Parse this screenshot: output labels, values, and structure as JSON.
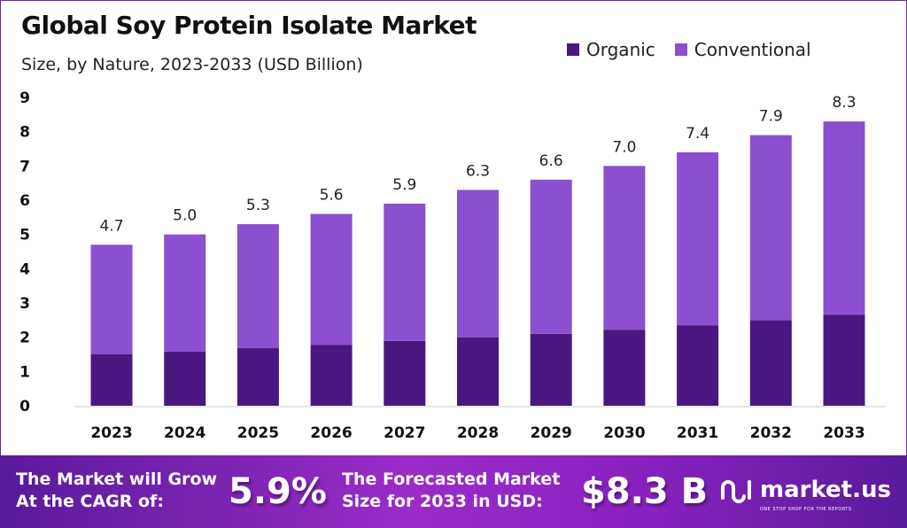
{
  "chart_data": {
    "type": "bar",
    "stacked": true,
    "title": "Global Soy Protein Isolate Market",
    "subtitle": "Size, by Nature, 2023-2033 (USD Billion)",
    "categories": [
      "2023",
      "2024",
      "2025",
      "2026",
      "2027",
      "2028",
      "2029",
      "2030",
      "2031",
      "2032",
      "2033"
    ],
    "series": [
      {
        "name": "Organic",
        "color": "#4a1780",
        "values": [
          1.5,
          1.58,
          1.68,
          1.78,
          1.89,
          2.0,
          2.1,
          2.22,
          2.35,
          2.5,
          2.66
        ]
      },
      {
        "name": "Conventional",
        "color": "#8b4fd0",
        "values": [
          3.2,
          3.42,
          3.62,
          3.82,
          4.01,
          4.3,
          4.5,
          4.78,
          5.05,
          5.4,
          5.64
        ]
      }
    ],
    "totals": [
      "4.7",
      "5.0",
      "5.3",
      "5.6",
      "5.9",
      "6.3",
      "6.6",
      "7.0",
      "7.4",
      "7.9",
      "8.3"
    ],
    "yticks": [
      "0",
      "1",
      "2",
      "3",
      "4",
      "5",
      "6",
      "7",
      "8",
      "9"
    ],
    "ylim": [
      0,
      9
    ],
    "grid": false,
    "legend": "top-right"
  },
  "banner": {
    "cagr_label": "The Market will Grow At the CAGR of:",
    "cagr_value": "5.9%",
    "forecast_label": "The Forecasted Market Size for 2033 in USD:",
    "forecast_value": "$8.3 B",
    "brand": "market.us",
    "tagline": "ONE STOP SHOP FOR THE REPORTS"
  }
}
